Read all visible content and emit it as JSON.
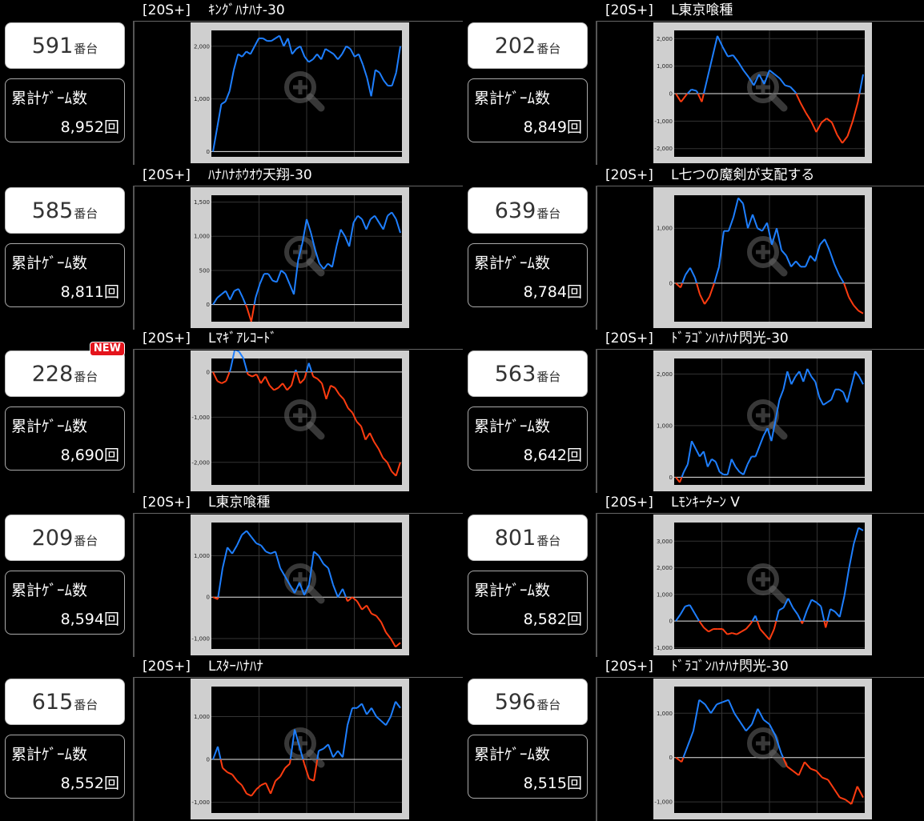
{
  "colors": {
    "positive": "#1e7fff",
    "negative": "#ff3c10",
    "zoom": "#666666",
    "new_badge": "#e4141c"
  },
  "units": {
    "machine_suffix": "番台",
    "games_label": "累計ｹﾞｰﾑ数",
    "games_suffix": "回"
  },
  "cards": [
    {
      "tag": "[20S+]",
      "name": "ｷﾝｸﾞﾊﾅﾊﾅ-30",
      "machine_no": "591",
      "games": "8,952",
      "is_new": false
    },
    {
      "tag": "[20S+]",
      "name": "L東京喰種",
      "machine_no": "202",
      "games": "8,849",
      "is_new": false
    },
    {
      "tag": "[20S+]",
      "name": "ﾊﾅﾊﾅﾎｳｵｳ天翔-30",
      "machine_no": "585",
      "games": "8,811",
      "is_new": false
    },
    {
      "tag": "[20S+]",
      "name": "L七つの魔剣が支配する",
      "machine_no": "639",
      "games": "8,784",
      "is_new": false
    },
    {
      "tag": "[20S+]",
      "name": "Lﾏｷﾞｱﾚｺｰﾄﾞ",
      "machine_no": "228",
      "games": "8,690",
      "is_new": true,
      "new_label": "NEW"
    },
    {
      "tag": "[20S+]",
      "name": "ﾄﾞﾗｺﾞﾝﾊﾅﾊﾅ閃光-30",
      "machine_no": "563",
      "games": "8,642",
      "is_new": false
    },
    {
      "tag": "[20S+]",
      "name": "L東京喰種",
      "machine_no": "209",
      "games": "8,594",
      "is_new": false
    },
    {
      "tag": "[20S+]",
      "name": "Lﾓﾝｷｰﾀｰﾝ V",
      "machine_no": "801",
      "games": "8,582",
      "is_new": false
    },
    {
      "tag": "[20S+]",
      "name": "Lｽﾀｰﾊﾅﾊﾅ",
      "machine_no": "615",
      "games": "8,552",
      "is_new": false
    },
    {
      "tag": "[20S+]",
      "name": "ﾄﾞﾗｺﾞﾝﾊﾅﾊﾅ閃光-30",
      "machine_no": "596",
      "games": "8,515",
      "is_new": false
    }
  ],
  "chart_data": [
    {
      "type": "line",
      "ylim": [
        -100,
        2300
      ],
      "yticks": [
        0,
        1000,
        2000
      ],
      "ytick_labels": [
        "0",
        "1,000",
        "2,000"
      ],
      "values": [
        0,
        450,
        900,
        950,
        1150,
        1550,
        1850,
        1800,
        1900,
        1850,
        2000,
        2150,
        2150,
        2100,
        2100,
        2150,
        2200,
        2000,
        2150,
        1850,
        1950,
        2000,
        1800,
        1700,
        1750,
        1850,
        1750,
        1950,
        1900,
        1850,
        1750,
        1850,
        2000,
        1950,
        1800,
        1850,
        1650,
        1400,
        1050,
        1550,
        1500,
        1350,
        1250,
        1250,
        1500,
        2000
      ]
    },
    {
      "type": "line",
      "ylim": [
        -2300,
        2300
      ],
      "yticks": [
        -2000,
        -1000,
        0,
        1000,
        2000
      ],
      "ytick_labels": [
        "-2,000",
        "-1,000",
        "0",
        "1,000",
        "2,000"
      ],
      "values": [
        0,
        -300,
        -50,
        150,
        100,
        -300,
        500,
        1300,
        2100,
        1700,
        1350,
        1400,
        1150,
        850,
        600,
        300,
        700,
        350,
        850,
        700,
        550,
        300,
        250,
        50,
        -350,
        -700,
        -1000,
        -1400,
        -1050,
        -900,
        -1050,
        -1500,
        -1800,
        -1550,
        -1000,
        -300,
        700
      ]
    },
    {
      "type": "line",
      "ylim": [
        -250,
        1600
      ],
      "yticks": [
        0,
        500,
        1000,
        1500
      ],
      "ytick_labels": [
        "0",
        "500",
        "1,000",
        "1,500"
      ],
      "values": [
        0,
        100,
        150,
        200,
        70,
        200,
        230,
        100,
        -50,
        -250,
        100,
        300,
        450,
        450,
        350,
        330,
        500,
        450,
        300,
        150,
        650,
        900,
        1250,
        1050,
        800,
        600,
        520,
        600,
        550,
        850,
        1100,
        1000,
        850,
        1200,
        1300,
        1250,
        1100,
        1250,
        1300,
        1200,
        1100,
        1300,
        1350,
        1250,
        1050
      ]
    },
    {
      "type": "line",
      "ylim": [
        -700,
        1600
      ],
      "yticks": [
        0,
        1000
      ],
      "ytick_labels": [
        "0",
        "1,000"
      ],
      "values": [
        0,
        -80,
        150,
        280,
        100,
        -200,
        -380,
        -250,
        0,
        300,
        950,
        950,
        1200,
        1550,
        1450,
        1000,
        1250,
        1000,
        950,
        1100,
        700,
        1000,
        600,
        500,
        300,
        400,
        300,
        300,
        500,
        400,
        700,
        800,
        600,
        350,
        150,
        0,
        -250,
        -400,
        -500,
        -550
      ]
    },
    {
      "type": "line",
      "ylim": [
        -2500,
        300
      ],
      "yticks": [
        -2000,
        -1000,
        0
      ],
      "ytick_labels": [
        "-2,000",
        "-1,000",
        "0"
      ],
      "values": [
        0,
        -200,
        -250,
        -200,
        50,
        500,
        450,
        300,
        -50,
        -100,
        -50,
        -250,
        -100,
        -300,
        -400,
        -350,
        -250,
        -400,
        -300,
        50,
        -250,
        -150,
        200,
        -100,
        -150,
        -250,
        -600,
        -300,
        -350,
        -500,
        -600,
        -800,
        -900,
        -1100,
        -1200,
        -1500,
        -1350,
        -1550,
        -1700,
        -1900,
        -2000,
        -2200,
        -2300,
        -2000
      ]
    },
    {
      "type": "line",
      "ylim": [
        -150,
        2300
      ],
      "yticks": [
        0,
        1000,
        2000
      ],
      "ytick_labels": [
        "0",
        "1,000",
        "2,000"
      ],
      "values": [
        0,
        -100,
        100,
        250,
        700,
        550,
        400,
        500,
        200,
        350,
        300,
        100,
        50,
        50,
        350,
        200,
        100,
        50,
        250,
        400,
        400,
        600,
        800,
        950,
        700,
        1100,
        1500,
        1700,
        2050,
        1800,
        1950,
        2050,
        1850,
        2100,
        1950,
        1850,
        1550,
        1400,
        1450,
        1500,
        1700,
        1700,
        1650,
        1450,
        1750,
        2050,
        1950,
        1800
      ]
    },
    {
      "type": "line",
      "ylim": [
        -1250,
        1800
      ],
      "yticks": [
        -1000,
        0,
        1000
      ],
      "ytick_labels": [
        "-1,000",
        "0",
        "1,000"
      ],
      "values": [
        0,
        -50,
        700,
        1200,
        1050,
        1250,
        1500,
        1600,
        1450,
        1300,
        1250,
        1100,
        1050,
        1100,
        700,
        500,
        300,
        100,
        350,
        50,
        300,
        1100,
        1000,
        800,
        700,
        300,
        0,
        200,
        -100,
        0,
        -100,
        -300,
        -200,
        -400,
        -450,
        -600,
        -850,
        -1000,
        -1200,
        -1100
      ]
    },
    {
      "type": "line",
      "ylim": [
        -1050,
        3700
      ],
      "yticks": [
        -1000,
        0,
        1000,
        2000,
        3000
      ],
      "ytick_labels": [
        "-1,000",
        "0",
        "1,000",
        "2,000",
        "3,000"
      ],
      "values": [
        0,
        250,
        550,
        600,
        300,
        0,
        -250,
        -400,
        -300,
        -300,
        -300,
        -500,
        -450,
        -500,
        -400,
        -300,
        -100,
        200,
        -300,
        -500,
        -700,
        -300,
        400,
        500,
        850,
        500,
        250,
        -100,
        400,
        800,
        700,
        550,
        -250,
        450,
        350,
        150,
        950,
        2000,
        2900,
        3500,
        3400
      ]
    },
    {
      "type": "line",
      "ylim": [
        -1250,
        1700
      ],
      "yticks": [
        -1000,
        0,
        1000
      ],
      "ytick_labels": [
        "-1,000",
        "0",
        "1,000"
      ],
      "values": [
        0,
        300,
        -200,
        -300,
        -350,
        -500,
        -600,
        -800,
        -850,
        -700,
        -600,
        -550,
        -800,
        -500,
        -400,
        -200,
        -100,
        700,
        300,
        -100,
        -450,
        -500,
        200,
        250,
        350,
        50,
        200,
        50,
        800,
        1200,
        1200,
        1300,
        1050,
        1200,
        1000,
        900,
        800,
        1000,
        1350,
        1200
      ]
    },
    {
      "type": "line",
      "ylim": [
        -1250,
        1600
      ],
      "yticks": [
        -1000,
        0,
        1000
      ],
      "ytick_labels": [
        "-1,000",
        "0",
        "1,000"
      ],
      "values": [
        0,
        -100,
        250,
        600,
        1300,
        1200,
        1000,
        1200,
        1250,
        1300,
        1000,
        800,
        600,
        750,
        1100,
        850,
        750,
        500,
        100,
        -200,
        -300,
        -400,
        -100,
        -250,
        -300,
        -450,
        -500,
        -700,
        -900,
        -950,
        -1050,
        -650,
        -900
      ]
    }
  ]
}
